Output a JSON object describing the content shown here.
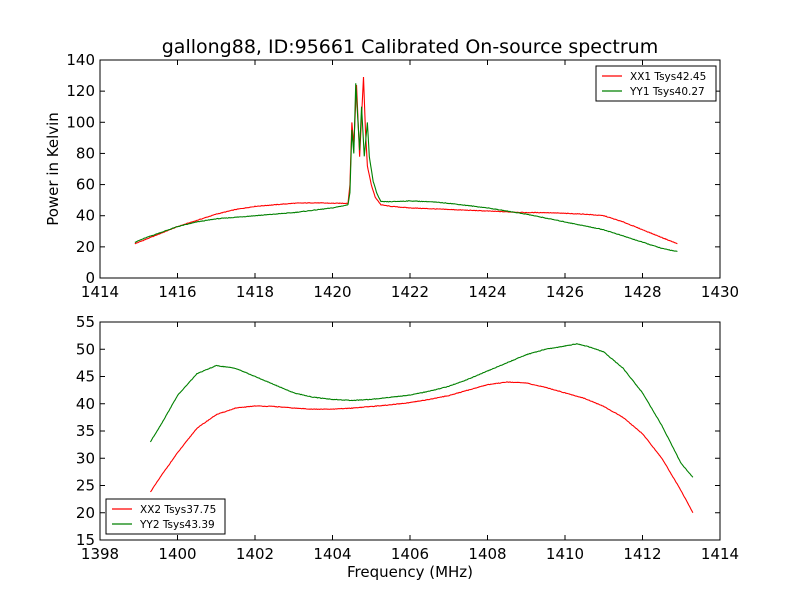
{
  "figure": {
    "title": "gallong88, ID:95661 Calibrated On-source spectrum",
    "xlabel": "Frequency (MHz)"
  },
  "chart_data": [
    {
      "type": "line",
      "title": "gallong88, ID:95661 Calibrated On-source spectrum",
      "xlabel": "",
      "ylabel": "Power in Kelvin",
      "xlim": [
        1414,
        1430
      ],
      "ylim": [
        0,
        140
      ],
      "xticks": [
        1414,
        1416,
        1418,
        1420,
        1422,
        1424,
        1426,
        1428,
        1430
      ],
      "yticks": [
        0,
        20,
        40,
        60,
        80,
        100,
        120,
        140
      ],
      "grid": false,
      "legend_position": "top-right",
      "series": [
        {
          "name": "XX1 Tsys42.45",
          "color": "#ff0000",
          "points": [
            [
              1414.9,
              22
            ],
            [
              1415.2,
              25
            ],
            [
              1415.6,
              29
            ],
            [
              1416.0,
              33
            ],
            [
              1416.5,
              37
            ],
            [
              1417.0,
              41
            ],
            [
              1417.5,
              44
            ],
            [
              1418.0,
              46
            ],
            [
              1418.5,
              47
            ],
            [
              1419.0,
              48
            ],
            [
              1419.5,
              48.3
            ],
            [
              1420.0,
              48
            ],
            [
              1420.4,
              48
            ],
            [
              1420.45,
              60
            ],
            [
              1420.5,
              100
            ],
            [
              1420.55,
              85
            ],
            [
              1420.62,
              124
            ],
            [
              1420.7,
              78
            ],
            [
              1420.8,
              129
            ],
            [
              1420.85,
              95
            ],
            [
              1420.9,
              72
            ],
            [
              1421.0,
              60
            ],
            [
              1421.1,
              52
            ],
            [
              1421.25,
              47
            ],
            [
              1421.5,
              46
            ],
            [
              1422.0,
              45
            ],
            [
              1422.5,
              44.5
            ],
            [
              1423.0,
              44
            ],
            [
              1423.5,
              43.5
            ],
            [
              1424.0,
              43
            ],
            [
              1424.5,
              42.5
            ],
            [
              1425.0,
              42
            ],
            [
              1425.5,
              42
            ],
            [
              1426.0,
              41.5
            ],
            [
              1426.5,
              41
            ],
            [
              1427.0,
              40
            ],
            [
              1427.5,
              36
            ],
            [
              1428.0,
              31
            ],
            [
              1428.5,
              26
            ],
            [
              1428.9,
              22
            ]
          ]
        },
        {
          "name": "YY1 Tsys40.27",
          "color": "#008000",
          "points": [
            [
              1414.9,
              23
            ],
            [
              1415.2,
              26
            ],
            [
              1415.6,
              29.5
            ],
            [
              1416.0,
              33
            ],
            [
              1416.5,
              36
            ],
            [
              1417.0,
              38
            ],
            [
              1417.5,
              39
            ],
            [
              1418.0,
              40
            ],
            [
              1418.5,
              41
            ],
            [
              1419.0,
              42
            ],
            [
              1419.5,
              43.5
            ],
            [
              1420.0,
              45
            ],
            [
              1420.4,
              47
            ],
            [
              1420.45,
              55
            ],
            [
              1420.5,
              95
            ],
            [
              1420.55,
              80
            ],
            [
              1420.6,
              125
            ],
            [
              1420.7,
              82
            ],
            [
              1420.75,
              110
            ],
            [
              1420.82,
              78
            ],
            [
              1420.9,
              100
            ],
            [
              1420.95,
              78
            ],
            [
              1421.05,
              62
            ],
            [
              1421.15,
              54
            ],
            [
              1421.25,
              49
            ],
            [
              1421.5,
              49
            ],
            [
              1422.0,
              49.5
            ],
            [
              1422.5,
              49
            ],
            [
              1423.0,
              48
            ],
            [
              1423.5,
              46.5
            ],
            [
              1424.0,
              45
            ],
            [
              1424.5,
              43
            ],
            [
              1425.0,
              41
            ],
            [
              1425.5,
              38.5
            ],
            [
              1426.0,
              36
            ],
            [
              1426.5,
              33.5
            ],
            [
              1427.0,
              31
            ],
            [
              1427.5,
              27
            ],
            [
              1428.0,
              23
            ],
            [
              1428.5,
              19
            ],
            [
              1428.9,
              17
            ]
          ]
        }
      ]
    },
    {
      "type": "line",
      "title": "",
      "xlabel": "Frequency (MHz)",
      "ylabel": "",
      "xlim": [
        1398,
        1414
      ],
      "ylim": [
        15,
        55
      ],
      "xticks": [
        1398,
        1400,
        1402,
        1404,
        1406,
        1408,
        1410,
        1412,
        1414
      ],
      "yticks": [
        15,
        20,
        25,
        30,
        35,
        40,
        45,
        50,
        55
      ],
      "grid": false,
      "legend_position": "bottom-left",
      "series": [
        {
          "name": "XX2 Tsys37.75",
          "color": "#ff0000",
          "points": [
            [
              1399.3,
              23.8
            ],
            [
              1399.6,
              27
            ],
            [
              1400.0,
              31
            ],
            [
              1400.5,
              35.5
            ],
            [
              1401.0,
              38
            ],
            [
              1401.5,
              39.2
            ],
            [
              1402.0,
              39.6
            ],
            [
              1402.5,
              39.5
            ],
            [
              1403.0,
              39.2
            ],
            [
              1403.5,
              39
            ],
            [
              1404.0,
              39
            ],
            [
              1404.5,
              39.2
            ],
            [
              1405.0,
              39.5
            ],
            [
              1405.5,
              39.8
            ],
            [
              1406.0,
              40.2
            ],
            [
              1406.5,
              40.8
            ],
            [
              1407.0,
              41.5
            ],
            [
              1407.5,
              42.5
            ],
            [
              1408.0,
              43.5
            ],
            [
              1408.5,
              44
            ],
            [
              1409.0,
              43.8
            ],
            [
              1409.5,
              43
            ],
            [
              1410.0,
              42
            ],
            [
              1410.5,
              41
            ],
            [
              1411.0,
              39.5
            ],
            [
              1411.5,
              37.5
            ],
            [
              1412.0,
              34.5
            ],
            [
              1412.5,
              30
            ],
            [
              1413.0,
              24
            ],
            [
              1413.3,
              20
            ]
          ]
        },
        {
          "name": "YY2 Tsys43.39",
          "color": "#008000",
          "points": [
            [
              1399.3,
              33
            ],
            [
              1399.6,
              36.5
            ],
            [
              1400.0,
              41.5
            ],
            [
              1400.5,
              45.5
            ],
            [
              1401.0,
              47
            ],
            [
              1401.5,
              46.5
            ],
            [
              1402.0,
              45
            ],
            [
              1402.5,
              43.5
            ],
            [
              1403.0,
              42
            ],
            [
              1403.5,
              41.2
            ],
            [
              1404.0,
              40.8
            ],
            [
              1404.5,
              40.6
            ],
            [
              1405.0,
              40.8
            ],
            [
              1405.5,
              41.2
            ],
            [
              1406.0,
              41.6
            ],
            [
              1406.5,
              42.3
            ],
            [
              1407.0,
              43.2
            ],
            [
              1407.5,
              44.5
            ],
            [
              1408.0,
              46
            ],
            [
              1408.5,
              47.5
            ],
            [
              1409.0,
              49
            ],
            [
              1409.5,
              50
            ],
            [
              1410.0,
              50.6
            ],
            [
              1410.3,
              51
            ],
            [
              1410.6,
              50.5
            ],
            [
              1411.0,
              49.5
            ],
            [
              1411.5,
              46.5
            ],
            [
              1412.0,
              42
            ],
            [
              1412.5,
              36
            ],
            [
              1413.0,
              29
            ],
            [
              1413.3,
              26.5
            ]
          ]
        }
      ]
    }
  ]
}
